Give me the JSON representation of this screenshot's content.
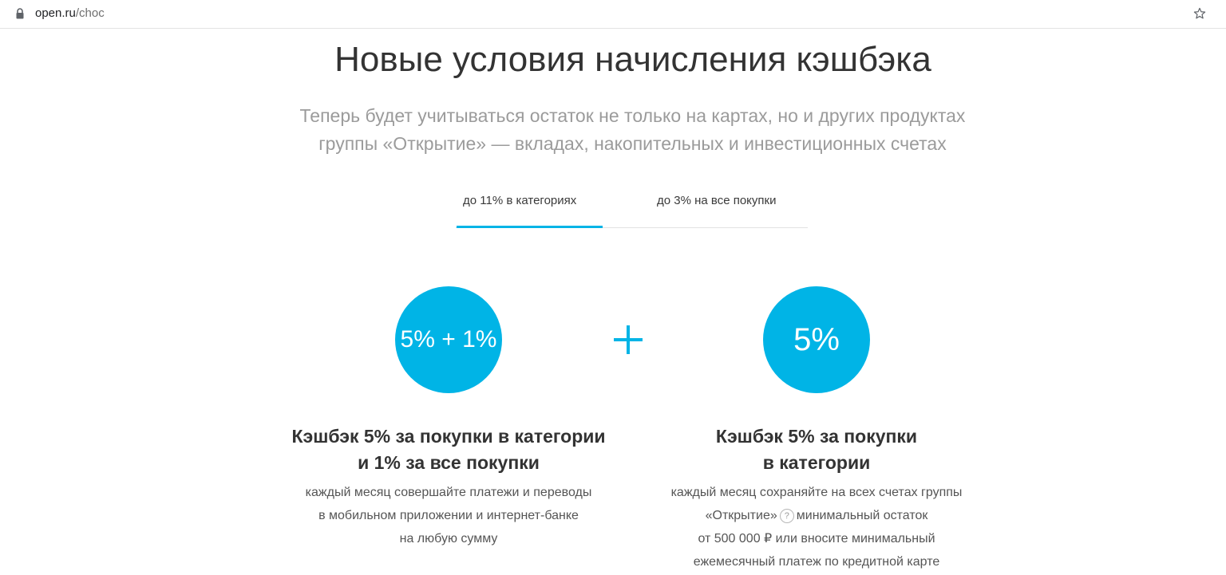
{
  "browser": {
    "url_host": "open.ru",
    "url_path": "/choc"
  },
  "page": {
    "title": "Новые условия начисления кэшбэка",
    "subtitle_lines": [
      "Теперь будет учитываться остаток не только на картах, но и других продуктах",
      "группы «Открытие» — вкладах, накопительных и инвестиционных счетах"
    ]
  },
  "tabs": [
    {
      "label": "до 11% в категориях",
      "active": true
    },
    {
      "label": "до 3% на все покупки",
      "active": false
    }
  ],
  "accent_color": "#00b4e6",
  "offers": [
    {
      "badge": "5% + 1%",
      "title_lines": [
        "Кэшбэк 5% за покупки в категории",
        "и 1% за все покупки"
      ],
      "desc_lines": [
        "каждый месяц совершайте платежи и переводы",
        "в мобильном приложении и интернет-банке",
        "на любую сумму"
      ]
    },
    {
      "badge": "5%",
      "title_lines": [
        "Кэшбэк 5% за покупки",
        "в категории"
      ],
      "desc_lines": [
        "каждый месяц сохраняйте на всех счетах группы",
        "«Открытие»",
        "минимальный остаток",
        "от 500 000 ₽ или вносите минимальный",
        "ежемесячный платеж по кредитной карте"
      ],
      "help_icon": "question-icon",
      "help_icon_glyph": "?"
    }
  ],
  "icons": {
    "lock": "lock-icon",
    "star": "star-icon",
    "plus": "plus-icon"
  }
}
